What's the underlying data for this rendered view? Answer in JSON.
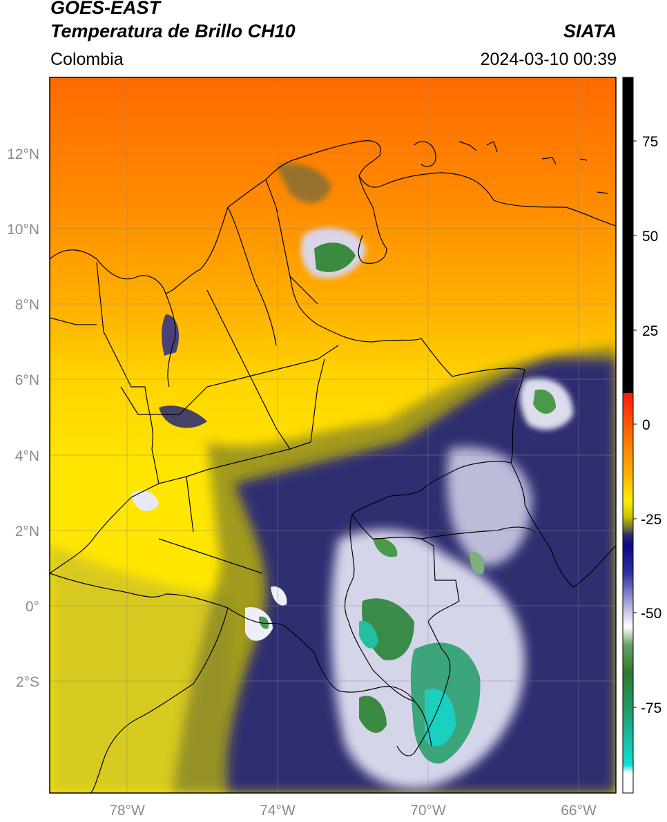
{
  "header": {
    "satellite": "GOES-EAST",
    "product": "Temperatura de Brillo CH10",
    "organization": "SIATA",
    "region": "Colombia",
    "datetime": "2024-03-10 00:39"
  },
  "map": {
    "lon_range": [
      -80,
      -65
    ],
    "lat_range": [
      -5,
      14
    ],
    "lat_ticks": [
      "12°N",
      "10°N",
      "8°N",
      "6°N",
      "4°N",
      "2°N",
      "0°",
      "2°S"
    ],
    "lon_ticks": [
      "78°W",
      "74°W",
      "70°W",
      "66°W"
    ]
  },
  "colorbar": {
    "labels": [
      "75",
      "50",
      "25",
      "0",
      "-25",
      "-50",
      "-75"
    ],
    "colors": {
      "black": "#000000",
      "red": "#e8200e",
      "orange": "#ff9900",
      "yellow": "#ffee00",
      "olive": "#8a8a2a",
      "navy": "#14147a",
      "white": "#ffffff",
      "green": "#3a8a3a",
      "cyan": "#17e0d6"
    }
  }
}
